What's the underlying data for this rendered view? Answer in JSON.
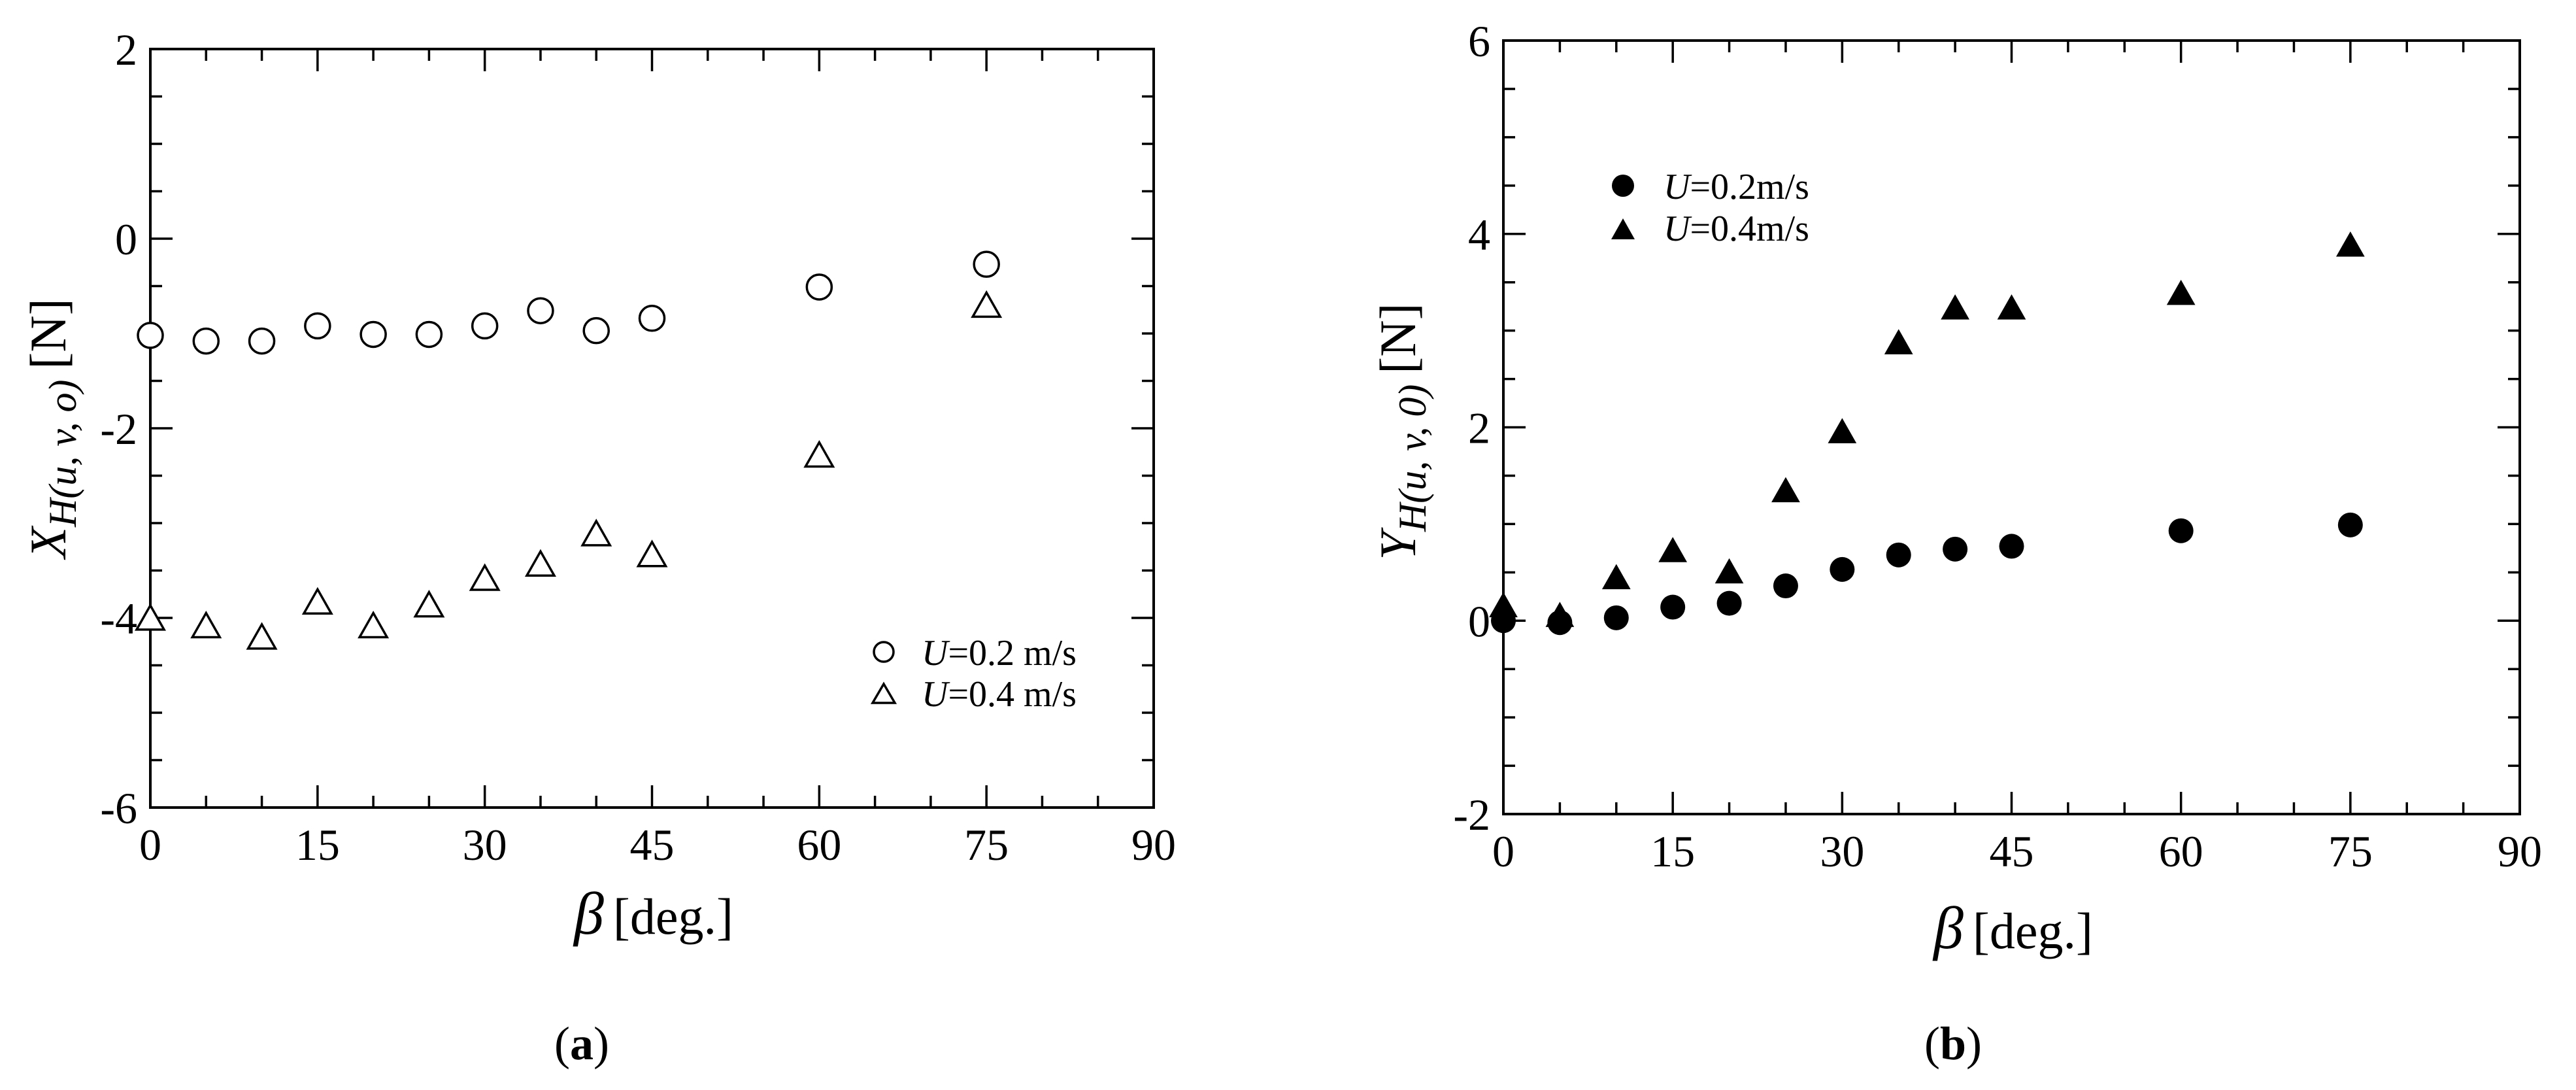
{
  "chart_data": [
    {
      "type": "scatter",
      "panel": "a",
      "caption_open": "(",
      "caption_letter": "a",
      "caption_close": ")",
      "title": "",
      "xlabel": "β [deg.]",
      "xlabel_symbol": "β",
      "xlabel_text": "[deg.]",
      "ylabel": "X_H(u, v, o) [N]",
      "ylabel_symbol": "X",
      "ylabel_sub": "H(u, v, o)",
      "ylabel_unit": "[N]",
      "xlim": [
        0,
        90
      ],
      "ylim": [
        -6,
        2
      ],
      "xticks": [
        "0",
        "15",
        "30",
        "45",
        "60",
        "75",
        "90"
      ],
      "yticks": [
        "-6",
        "-4",
        "-2",
        "0",
        "2"
      ],
      "legend_position": "bottom-right",
      "series": [
        {
          "name": "U =0.2 m/s",
          "legend_var": "U",
          "legend_rest": "=0.2 m/s",
          "marker": "open-circle",
          "points": [
            [
              0,
              -1.02
            ],
            [
              5,
              -1.08
            ],
            [
              10,
              -1.08
            ],
            [
              15,
              -0.92
            ],
            [
              20,
              -1.01
            ],
            [
              25,
              -1.01
            ],
            [
              30,
              -0.92
            ],
            [
              35,
              -0.76
            ],
            [
              40,
              -0.97
            ],
            [
              45,
              -0.84
            ],
            [
              60,
              -0.51
            ],
            [
              75,
              -0.27
            ]
          ]
        },
        {
          "name": "U =0.4 m/s",
          "legend_var": "U",
          "legend_rest": "=0.4 m/s",
          "marker": "open-triangle",
          "points": [
            [
              0,
              -4.02
            ],
            [
              5,
              -4.1
            ],
            [
              10,
              -4.22
            ],
            [
              15,
              -3.85
            ],
            [
              20,
              -4.1
            ],
            [
              25,
              -3.88
            ],
            [
              30,
              -3.6
            ],
            [
              35,
              -3.45
            ],
            [
              40,
              -3.13
            ],
            [
              45,
              -3.35
            ],
            [
              60,
              -2.3
            ],
            [
              75,
              -0.72
            ]
          ]
        }
      ]
    },
    {
      "type": "scatter",
      "panel": "b",
      "caption_open": "(",
      "caption_letter": "b",
      "caption_close": ")",
      "title": "",
      "xlabel": "β [deg.]",
      "xlabel_symbol": "β",
      "xlabel_text": "[deg.]",
      "ylabel": "Y_H(u, v, 0) [N]",
      "ylabel_symbol": "Y",
      "ylabel_sub": "H(u, v, 0)",
      "ylabel_unit": "[N]",
      "xlim": [
        0,
        90
      ],
      "ylim": [
        -2,
        6
      ],
      "xticks": [
        "0",
        "15",
        "30",
        "45",
        "60",
        "75",
        "90"
      ],
      "yticks": [
        "-2",
        "0",
        "2",
        "4",
        "6"
      ],
      "legend_position": "top-left",
      "series": [
        {
          "name": "U =0.2m/s",
          "legend_var": "U",
          "legend_rest": "=0.2m/s",
          "marker": "filled-circle",
          "points": [
            [
              0,
              0.0
            ],
            [
              5,
              -0.02
            ],
            [
              10,
              0.03
            ],
            [
              15,
              0.14
            ],
            [
              20,
              0.18
            ],
            [
              25,
              0.36
            ],
            [
              30,
              0.53
            ],
            [
              35,
              0.68
            ],
            [
              40,
              0.74
            ],
            [
              45,
              0.77
            ],
            [
              60,
              0.93
            ],
            [
              75,
              0.99
            ]
          ]
        },
        {
          "name": "U =0.4m/s",
          "legend_var": "U",
          "legend_rest": "=0.4m/s",
          "marker": "filled-triangle",
          "points": [
            [
              0,
              0.14
            ],
            [
              5,
              0.04
            ],
            [
              10,
              0.43
            ],
            [
              15,
              0.71
            ],
            [
              20,
              0.49
            ],
            [
              25,
              1.33
            ],
            [
              30,
              1.94
            ],
            [
              35,
              2.86
            ],
            [
              40,
              3.22
            ],
            [
              45,
              3.22
            ],
            [
              60,
              3.37
            ],
            [
              75,
              3.87
            ]
          ]
        }
      ]
    }
  ]
}
